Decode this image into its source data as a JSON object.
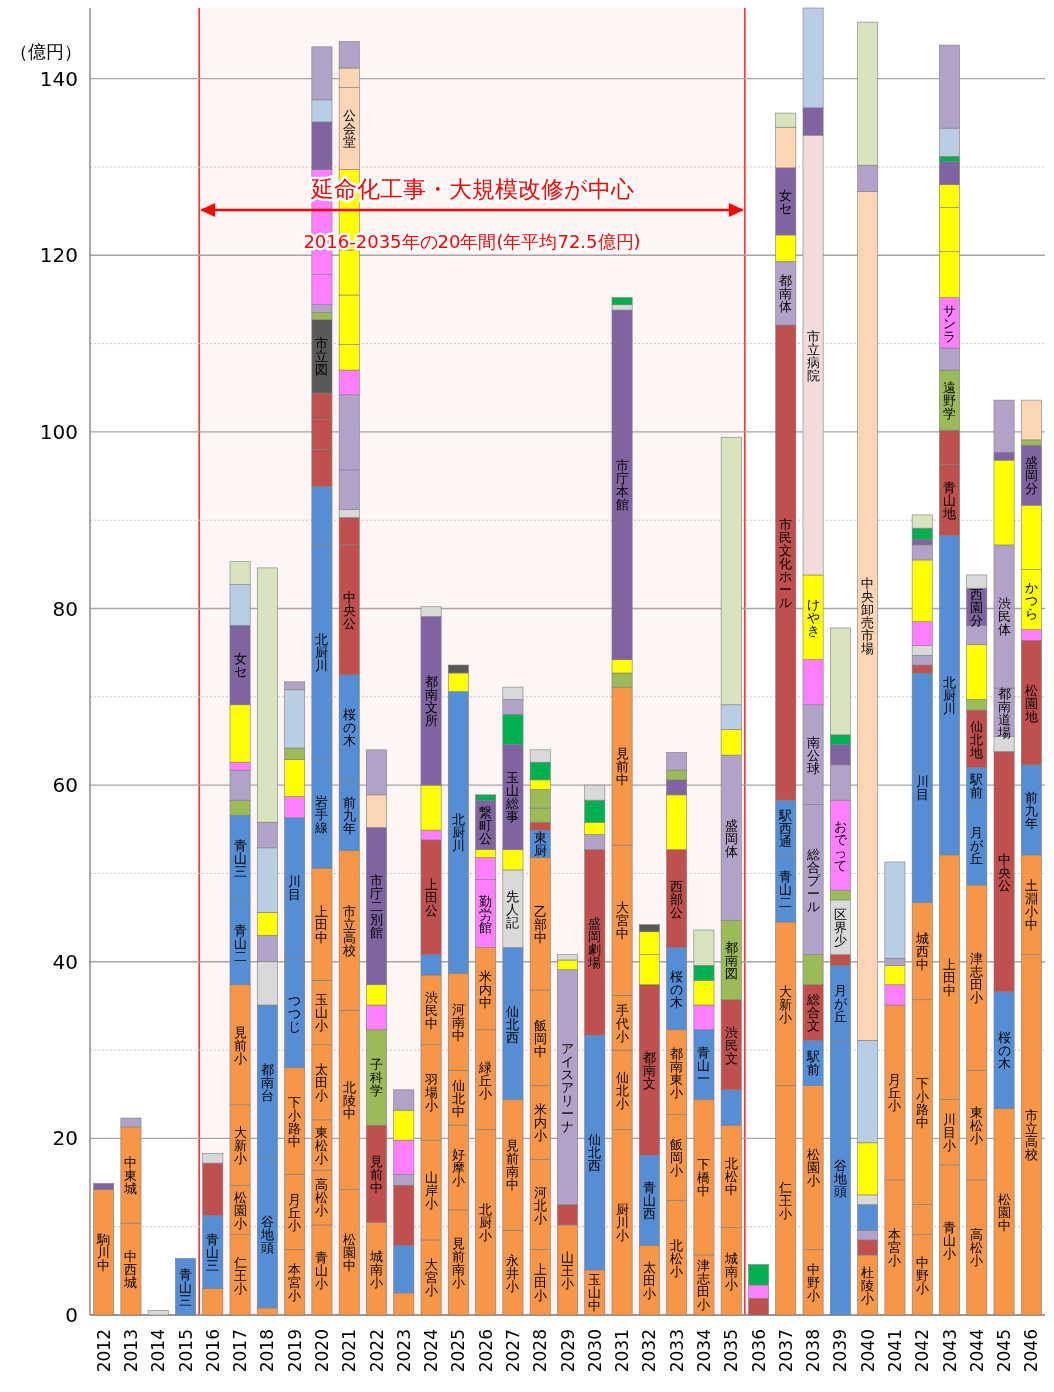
{
  "chart_data": {
    "type": "bar",
    "stacked": true,
    "ylabel": "（億円）",
    "categories": [
      "2012",
      "2013",
      "2014",
      "2015",
      "2016",
      "2017",
      "2018",
      "2019",
      "2020",
      "2021",
      "2022",
      "2023",
      "2024",
      "2025",
      "2026",
      "2027",
      "2028",
      "2029",
      "2030",
      "2031",
      "2032",
      "2033",
      "2034",
      "2035",
      "2036",
      "2037",
      "2038",
      "2039",
      "2040",
      "2041",
      "2042",
      "2043",
      "2044",
      "2045",
      "2046"
    ],
    "ylim": [
      0,
      148
    ],
    "yticks": [
      0,
      {
        "value": 10,
        "label": null
      },
      20,
      {
        "value": 30,
        "label": null
      },
      40,
      {
        "value": 50,
        "label": null
      },
      60,
      {
        "value": 70,
        "label": null
      },
      80,
      {
        "value": 90,
        "label": null
      },
      100,
      {
        "value": 110,
        "label": null
      },
      120,
      {
        "value": 130,
        "label": null
      },
      140
    ],
    "grid": "y",
    "bands": [
      {
        "axis": "x",
        "from": "2016",
        "to": "2035",
        "label": "延命化工事・大規模改修が中心",
        "color": "#ff0000"
      }
    ],
    "annotations": [
      "2016-2035年の20年間(年平均72.5億円)"
    ],
    "series": [
      {
        "values": [
          14.2,
          10.4,
          0.5,
          6.4,
          3.0,
          9.1,
          0.8,
          7.4,
          10.2,
          14.2,
          10.5,
          2.5,
          8.5,
          11.9,
          21.0,
          9.6,
          7.4,
          10.2,
          5.1,
          21.0,
          7.9,
          13.0,
          6.8,
          9.9,
          1.9,
          26.0,
          7.4,
          31.1,
          6.8,
          15.3,
          9.1,
          17.0,
          15.3,
          23.4,
          40.8
        ],
        "colors": [
          "#f79646",
          "#f79646",
          "#d9d9d9",
          "#558ed5",
          "#f79646",
          "#f79646",
          "#f79646",
          "#f79646",
          "#f79646",
          "#f79646",
          "#f79646",
          "#f79646",
          "#f79646",
          "#f79646",
          "#f79646",
          "#f79646",
          "#f79646",
          "#f79646",
          "#f79646",
          "#f79646",
          "#f79646",
          "#f79646",
          "#f79646",
          "#f79646",
          "#c0504d",
          "#f79646",
          "#f79646",
          "#558ed5",
          "#f79646",
          "#f79646",
          "#f79646",
          "#f79646",
          "#f79646",
          "#f79646",
          "#f79646"
        ],
        "value_labels": [
          "駒川中",
          "中西城",
          null,
          "青山三",
          null,
          "仁王小",
          null,
          "本宮小",
          "青山小",
          "松園中",
          "城南小",
          null,
          "大宮小",
          "見前南小",
          "北厨小",
          "永井小",
          "上田小",
          "山王小",
          "玉山中",
          "厨川小",
          "太田小",
          "北松小",
          "津志田小",
          "城南小",
          null,
          "仁王小",
          "中野小",
          "谷地頭",
          "杜陵小",
          "本宮小",
          "中野小",
          "青山小",
          "高松小",
          "松園中",
          "市立高校"
        ]
      },
      {
        "values": [
          0.7,
          10.9,
          null,
          null,
          8.3,
          5.6,
          16.8,
          8.5,
          6.2,
          20.3,
          11.0,
          5.4,
          11.3,
          9.6,
          11.3,
          14.8,
          10.2,
          2.3,
          26.6,
          9.0,
          10.2,
          9.7,
          17.6,
          11.6,
          1.5,
          18.5,
          18.6,
          8.5,
          1.7,
          19.8,
          3.4,
          7.4,
          12.4,
          13.2,
          11.3
        ],
        "colors": [
          "#8064a2",
          "#f79646",
          null,
          null,
          "#558ed5",
          "#f79646",
          "#558ed5",
          "#f79646",
          "#f79646",
          "#f79646",
          "#c0504d",
          "#558ed5",
          "#f79646",
          "#f79646",
          "#f79646",
          "#f79646",
          "#f79646",
          "#c0504d",
          "#558ed5",
          "#f79646",
          "#558ed5",
          "#f79646",
          "#f79646",
          "#f79646",
          "#ff7fff",
          "#f79646",
          "#f79646",
          "#558ed5",
          "#c0504d",
          "#f79646",
          "#f79646",
          "#f79646",
          "#f79646",
          "#558ed5",
          "#f79646"
        ],
        "value_labels": [
          null,
          "中東城",
          null,
          null,
          "青山三",
          "松園小",
          "谷地頭",
          "月丘小",
          "高松小",
          "北陵中",
          "見前中",
          null,
          "山岸小",
          "好摩小",
          "緑丘小",
          "見前南中",
          "河北小",
          null,
          "仙北西",
          "仙北小",
          "青山西",
          "飯岡小",
          "下橋中",
          "北松中",
          null,
          "大新小",
          "松園小",
          "月が丘",
          null,
          "月丘小",
          null,
          "川目小",
          "東松小",
          "桜の木",
          "土淵小中"
        ]
      },
      {
        "values": [
          null,
          1.0,
          null,
          null,
          5.9,
          9.1,
          17.5,
          12.1,
          5.7,
          18.1,
          10.8,
          6.8,
          10.8,
          6.2,
          9.3,
          17.2,
          8.4,
          26.6,
          21.0,
          6.2,
          19.3,
          9.6,
          7.9,
          4.0,
          2.3,
          7.4,
          5.1,
          1.2,
          1.1,
          2.3,
          23.2,
          27.7,
          21.0,
          27.2,
          10.2
        ],
        "colors": [
          null,
          "#b3a2c7",
          null,
          null,
          "#c0504d",
          "#f79646",
          "#558ed5",
          "#f79646",
          "#f79646",
          "#f79646",
          "#9bbb59",
          "#c0504d",
          "#f79646",
          "#f79646",
          "#f79646",
          "#558ed5",
          "#f79646",
          "#b3a2c7",
          "#c0504d",
          "#f79646",
          "#c0504d",
          "#f79646",
          "#558ed5",
          "#558ed5",
          "#00b050",
          "#558ed5",
          "#558ed5",
          "#c0504d",
          "#b3a2c7",
          "#ff7fff",
          "#f79646",
          "#f79646",
          "#f79646",
          "#c0504d",
          "#558ed5"
        ],
        "value_labels": [
          null,
          null,
          null,
          null,
          null,
          "大新小",
          "都南台",
          "下小路中",
          "東松小",
          "市立高校",
          "子科学",
          null,
          "羽場小",
          "仙北中",
          "米内中",
          "仙北西",
          "米内小",
          "アイスアリーナ",
          "盛岡劇場",
          "手代小",
          "都南文",
          "都南東小",
          "青山一",
          null,
          null,
          "青山二",
          "駅前",
          null,
          null,
          null,
          "下小路中",
          "上田中",
          "津志田小",
          "中央公",
          "前九年"
        ]
      },
      {
        "values": [
          null,
          null,
          null,
          null,
          1.1,
          13.6,
          4.9,
          12.4,
          8.5,
          8.0,
          2.8,
          1.2,
          7.9,
          11.0,
          7.7,
          8.8,
          10.8,
          1.1,
          1.7,
          17.0,
          3.4,
          9.3,
          2.8,
          10.2,
          null,
          6.4,
          6.3,
          6.2,
          2.9,
          2.2,
          11.0,
          36.2,
          9.1,
          1.7,
          14.1
        ],
        "colors": [
          null,
          null,
          null,
          null,
          "#d9d9d9",
          "#f79646",
          "#d9d9d9",
          "#558ed5",
          "#f79646",
          "#558ed5",
          "#ff7fff",
          "#b3a2c7",
          "#f79646",
          "#f79646",
          "#ff7fff",
          "#d9d9d9",
          "#f79646",
          "#ffff00",
          "#b3a2c7",
          "#f79646",
          "#ffff00",
          "#558ed5",
          "#ff7fff",
          "#c0504d",
          null,
          "#558ed5",
          "#c0504d",
          "#d9d9d9",
          "#558ed5",
          "#ffff00",
          "#f79646",
          "#558ed5",
          "#558ed5",
          "#d9d9d9",
          "#c0504d"
        ],
        "value_labels": [
          null,
          null,
          null,
          null,
          null,
          "見前小",
          null,
          "つつじ",
          "太田小",
          "前九年",
          null,
          null,
          "渋民中",
          "河南中",
          "勤労館",
          "先人記",
          "飯岡中",
          null,
          null,
          "大宮中",
          null,
          "桜の木",
          null,
          "渋民文",
          null,
          "駅西通",
          "総合文",
          "区界少",
          null,
          null,
          "城西中",
          "北厨川",
          "月が丘",
          null,
          "松園地"
        ]
      },
      {
        "values": [
          null,
          null,
          null,
          null,
          null,
          9.4,
          3.0,
          15.9,
          7.3,
          11.9,
          2.3,
          3.9,
          2.3,
          31.9,
          2.5,
          2.3,
          15.0,
          0.6,
          1.4,
          17.9,
          2.6,
          11.1,
          2.8,
          9.0,
          null,
          53.8,
          3.4,
          1.1,
          1.1,
          0.8,
          26.0,
          8.0,
          4.2,
          5.5,
          1.2
        ],
        "colors": [
          null,
          null,
          null,
          null,
          null,
          "#558ed5",
          "#b3a2c7",
          "#558ed5",
          "#f79646",
          "#558ed5",
          "#ffff00",
          "#ff7fff",
          "#558ed5",
          "#558ed5",
          "#ff7fff",
          "#ffff00",
          "#f79646",
          "#d9d9d9",
          "#ffff00",
          "#f79646",
          "#ffff00",
          "#c0504d",
          "#ffff00",
          "#9bbb59",
          null,
          "#c0504d",
          "#9bbb59",
          "#9bbb59",
          "#d9d9d9",
          "#b3a2c7",
          "#558ed5",
          "#c0504d",
          "#558ed5",
          "#b3a2c7",
          "#ff7fff"
        ],
        "value_labels": [
          null,
          null,
          null,
          null,
          null,
          "青山二",
          null,
          "川目",
          "玉山小",
          "桜の木",
          null,
          null,
          null,
          "北厨川",
          null,
          null,
          "乙部中",
          null,
          null,
          "見前中",
          null,
          "西部公",
          null,
          "都南図",
          null,
          "市民文化ホール",
          null,
          null,
          null,
          null,
          "川目",
          "青山地",
          "駅前",
          "都南道場",
          null
        ]
      },
      {
        "values": [
          null,
          null,
          null,
          null,
          null,
          9.8,
          2.6,
          2.4,
          12.7,
          14.7,
          17.8,
          3.4,
          13.0,
          2.1,
          0.9,
          11.9,
          3.1,
          null,
          2.5,
          1.6,
          0.8,
          6.2,
          1.7,
          18.7,
          null,
          7.2,
          17.0,
          10.2,
          5.9,
          10.9,
          0.9,
          3.9,
          6.5,
          16.2,
          6.8
        ],
        "colors": [
          null,
          null,
          null,
          null,
          null,
          "#558ed5",
          "#ffff00",
          "#ff7fff",
          "#f79646",
          "#c0504d",
          "#8064a2",
          "#ffff00",
          "#c0504d",
          "#ffff00",
          "#ffff00",
          "#8064a2",
          "#558ed5",
          null,
          "#00b050",
          "#9bbb59",
          "#595959",
          "#ffff00",
          "#00b050",
          "#b3a2c7",
          null,
          "#b3a2c7",
          "#b3a2c7",
          "#ff7fff",
          "#ffff00",
          "#b9cde5",
          "#c0504d",
          "#c0504d",
          "#c0504d",
          "#b3a2c7",
          "#ffff00"
        ],
        "value_labels": [
          null,
          null,
          null,
          null,
          null,
          "青山三",
          null,
          null,
          "上田中",
          "中央公",
          "市庁二別館",
          null,
          "上田公",
          null,
          null,
          "玉山総事",
          "東厨",
          null,
          null,
          null,
          null,
          null,
          null,
          "盛岡体",
          null,
          "都南体",
          "総合プール",
          "おでって",
          null,
          null,
          null,
          null,
          "仙北地",
          "渋民体",
          "かつら"
        ]
      },
      {
        "values": [
          null,
          null,
          null,
          null,
          null,
          1.7,
          7.3,
          4.2,
          12.3,
          3.1,
          3.7,
          2.3,
          1.1,
          0.9,
          5.6,
          3.4,
          0.9,
          null,
          1.7,
          1.5,
          null,
          1.7,
          4.0,
          2.9,
          null,
          3.0,
          11.3,
          4.0,
          11.6,
          null,
          1.1,
          6.8,
          1.2,
          9.6,
          7.3
        ],
        "colors": [
          null,
          null,
          null,
          null,
          null,
          "#9bbb59",
          "#b9cde5",
          "#ffff00",
          "#558ed5",
          "#c0504d",
          "#fcd5b5",
          "#b3a2c7",
          "#ff7fff",
          "#595959",
          "#8064a2",
          "#00b050",
          "#c0504d",
          null,
          "#d9d9d9",
          "#ffff00",
          null,
          "#8064a2",
          "#d7e4bd",
          "#ffff00",
          null,
          "#ffff00",
          "#b3a2c7",
          "#b3a2c7",
          "#b9cde5",
          null,
          "#b3a2c7",
          "#9bbb59",
          "#9bbb59",
          "#ffff00",
          "#ffff00"
        ],
        "value_labels": [
          null,
          null,
          null,
          null,
          null,
          null,
          null,
          null,
          "岩手線",
          null,
          null,
          null,
          null,
          null,
          "繋町公",
          null,
          null,
          null,
          null,
          null,
          null,
          null,
          null,
          null,
          null,
          null,
          "南公球",
          null,
          null,
          null,
          null,
          "遠野学",
          null,
          null,
          null
        ]
      },
      {
        "values": [
          null,
          null,
          null,
          null,
          null,
          3.4,
          2.9,
          1.3,
          24.3,
          0.9,
          5.1,
          null,
          5.1,
          null,
          0.6,
          1.7,
          1.6,
          null,
          null,
          39.6,
          null,
          1.1,
          null,
          2.8,
          null,
          7.6,
          5.1,
          2.3,
          96.1,
          null,
          1.1,
          2.5,
          6.2,
          0.9,
          6.8
        ],
        "colors": [
          null,
          null,
          null,
          null,
          null,
          "#b3a2c7",
          "#b3a2c7",
          "#9bbb59",
          "#558ed5",
          "#d9d9d9",
          "#b3a2c7",
          null,
          "#ffff00",
          null,
          "#00b050",
          "#b3a2c7",
          "#9bbb59",
          null,
          null,
          "#8064a2",
          null,
          "#9bbb59",
          null,
          "#b9cde5",
          null,
          "#8064a2",
          "#ff7fff",
          "#8064a2",
          "#fcd5b5",
          null,
          "#d9d9d9",
          "#b3a2c7",
          "#ffff00",
          "#8064a2",
          "#8064a2"
        ],
        "value_labels": [
          null,
          null,
          null,
          null,
          null,
          null,
          null,
          null,
          "北厨川",
          null,
          null,
          null,
          null,
          null,
          null,
          null,
          null,
          null,
          null,
          "市庁本館",
          null,
          null,
          null,
          null,
          null,
          "女セ",
          null,
          null,
          "中央卸売市場",
          null,
          null,
          null,
          null,
          null,
          "盛岡分"
        ]
      },
      {
        "values": [
          null,
          null,
          null,
          null,
          null,
          0.9,
          28.8,
          6.6,
          6.6,
          4.5,
          null,
          null,
          19.1,
          null,
          null,
          1.4,
          2.1,
          null,
          null,
          0.6,
          null,
          2.0,
          null,
          30.3,
          null,
          4.6,
          9.6,
          1.1,
          3.0,
          null,
          2.7,
          5.7,
          2.2,
          5.9,
          0.6
        ],
        "colors": [
          null,
          null,
          null,
          null,
          null,
          "#ff7fff",
          "#d7e4bd",
          "#b9cde5",
          "#558ed5",
          "#b3a2c7",
          null,
          null,
          "#8064a2",
          null,
          null,
          "#d9d9d9",
          "#9bbb59",
          null,
          null,
          "#d9d9d9",
          null,
          "#b3a2c7",
          null,
          "#d7e4bd",
          null,
          "#fcd5b5",
          "#ffff00",
          "#00b050",
          "#b3a2c7",
          null,
          "#ff7fff",
          "#ff7fff",
          "#b3a2c7",
          "#b3a2c7",
          "#9bbb59"
        ],
        "value_labels": [
          null,
          null,
          null,
          null,
          null,
          null,
          null,
          null,
          null,
          null,
          null,
          null,
          "都南文所",
          null,
          null,
          null,
          null,
          null,
          null,
          null,
          null,
          null,
          null,
          null,
          null,
          null,
          "けやき",
          null,
          null,
          null,
          null,
          "サンラ",
          null,
          null,
          null
        ]
      },
      {
        "values": [
          null,
          null,
          null,
          null,
          null,
          6.5,
          null,
          0.9,
          4.2,
          8.5,
          null,
          null,
          1.1,
          null,
          null,
          null,
          1.1,
          null,
          null,
          0.8,
          null,
          null,
          null,
          null,
          null,
          1.6,
          49.8,
          12.1,
          16.2,
          null,
          7.0,
          5.2,
          4.2,
          null,
          4.5
        ],
        "colors": [
          null,
          null,
          null,
          null,
          null,
          "#ffff00",
          null,
          "#b3a2c7",
          "#c0504d",
          "#b3a2c7",
          null,
          null,
          "#d9d9d9",
          null,
          null,
          null,
          "#ffff00",
          null,
          null,
          "#00b050",
          null,
          null,
          null,
          null,
          null,
          "#d7e4bd",
          "#f2dcdb",
          "#d7e4bd",
          "#d7e4bd",
          null,
          "#ffff00",
          "#ffff00",
          "#8064a2",
          null,
          "#fcd5b5"
        ],
        "value_labels": [
          null,
          null,
          null,
          null,
          null,
          null,
          null,
          null,
          null,
          null,
          null,
          null,
          null,
          null,
          null,
          null,
          null,
          null,
          null,
          null,
          null,
          null,
          null,
          null,
          null,
          null,
          "市立病院",
          null,
          null,
          null,
          null,
          null,
          "西園分",
          null,
          null
        ]
      },
      {
        "values": [
          null,
          null,
          null,
          null,
          null,
          9.0,
          null,
          null,
          3.4,
          2.8,
          null,
          null,
          null,
          null,
          null,
          null,
          2.0,
          null,
          null,
          null,
          null,
          null,
          null,
          null,
          null,
          null,
          3.1,
          null,
          null,
          null,
          1.7,
          5.0,
          1.5,
          null,
          null
        ],
        "colors": [
          null,
          null,
          null,
          null,
          null,
          "#8064a2",
          null,
          null,
          "#c0504d",
          "#ff7fff",
          null,
          null,
          null,
          null,
          null,
          null,
          "#00b050",
          null,
          null,
          null,
          null,
          null,
          null,
          null,
          null,
          null,
          "#8064a2",
          null,
          null,
          null,
          "#b3a2c7",
          "#ffff00",
          "#d9d9d9",
          null,
          null
        ],
        "value_labels": [
          null,
          null,
          null,
          null,
          null,
          "女セ",
          null,
          null,
          null,
          null,
          null,
          null,
          null,
          null,
          null,
          null,
          null,
          null,
          null,
          null,
          null,
          null,
          null,
          null,
          null,
          null,
          null,
          null,
          null,
          null,
          null,
          null,
          null,
          null,
          null
        ]
      },
      {
        "values": [
          null,
          null,
          null,
          null,
          null,
          4.6,
          null,
          null,
          3.0,
          2.9,
          null,
          null,
          null,
          null,
          null,
          null,
          1.4,
          null,
          null,
          null,
          null,
          null,
          null,
          null,
          null,
          null,
          11.3,
          null,
          null,
          null,
          0.6,
          2.6,
          null,
          null,
          null
        ],
        "colors": [
          null,
          null,
          null,
          null,
          null,
          "#b9cde5",
          null,
          null,
          "#c0504d",
          "#ffff00",
          null,
          null,
          null,
          null,
          null,
          null,
          "#d9d9d9",
          null,
          null,
          null,
          null,
          null,
          null,
          null,
          null,
          null,
          "#b9cde5",
          null,
          null,
          null,
          "#8064a2",
          "#ffff00",
          null,
          null,
          null
        ]
      },
      {
        "values": [
          null,
          null,
          null,
          null,
          null,
          2.6,
          null,
          null,
          8.3,
          5.6,
          null,
          null,
          null,
          null,
          null,
          null,
          null,
          null,
          null,
          null,
          null,
          null,
          null,
          null,
          null,
          null,
          null,
          null,
          null,
          null,
          1.3,
          2.6,
          null,
          null,
          null
        ],
        "colors": [
          null,
          null,
          null,
          null,
          null,
          "#d7e4bd",
          null,
          null,
          "#595959",
          "#ffff00",
          null,
          null,
          null,
          null,
          null,
          null,
          null,
          null,
          null,
          null,
          null,
          null,
          null,
          null,
          null,
          null,
          null,
          null,
          null,
          null,
          "#00b050",
          "#8064a2",
          null,
          null,
          null
        ],
        "value_labels": [
          null,
          null,
          null,
          null,
          null,
          null,
          null,
          null,
          "市立図",
          null,
          null,
          null,
          null,
          null,
          null,
          null,
          null,
          null,
          null,
          null,
          null,
          null,
          null,
          null,
          null,
          null,
          null,
          null,
          null,
          null,
          null,
          null,
          null,
          null,
          null
        ]
      },
      {
        "values": [
          null,
          null,
          null,
          null,
          null,
          null,
          null,
          null,
          0.8,
          5.1,
          null,
          null,
          null,
          null,
          null,
          null,
          null,
          null,
          null,
          null,
          null,
          null,
          null,
          null,
          null,
          null,
          null,
          null,
          null,
          null,
          1.5,
          0.6,
          null,
          null,
          null
        ],
        "colors": [
          null,
          null,
          null,
          null,
          null,
          null,
          null,
          null,
          "#9bbb59",
          "#ffff00",
          null,
          null,
          null,
          null,
          null,
          null,
          null,
          null,
          null,
          null,
          null,
          null,
          null,
          null,
          null,
          null,
          null,
          null,
          null,
          null,
          "#d7e4bd",
          "#00b050",
          null,
          null,
          null
        ]
      },
      {
        "values": [
          null,
          null,
          null,
          null,
          null,
          null,
          null,
          null,
          0.9,
          9.1,
          null,
          null,
          null,
          null,
          null,
          null,
          null,
          null,
          null,
          null,
          null,
          null,
          null,
          null,
          null,
          null,
          null,
          null,
          null,
          null,
          null,
          3.2,
          null,
          null,
          null
        ],
        "colors": [
          null,
          null,
          null,
          null,
          null,
          null,
          null,
          null,
          "#b3a2c7",
          "#ffff00",
          null,
          null,
          null,
          null,
          null,
          null,
          null,
          null,
          null,
          null,
          null,
          null,
          null,
          null,
          null,
          null,
          null,
          null,
          null,
          null,
          null,
          "#b9cde5",
          null,
          null,
          null
        ]
      },
      {
        "values": [
          null,
          null,
          null,
          null,
          null,
          null,
          null,
          null,
          3.4,
          9.3,
          null,
          null,
          null,
          null,
          null,
          null,
          null,
          null,
          null,
          null,
          null,
          null,
          null,
          null,
          null,
          null,
          null,
          null,
          null,
          null,
          null,
          9.4,
          null,
          null,
          null
        ],
        "colors": [
          null,
          null,
          null,
          null,
          null,
          null,
          null,
          null,
          "#ff7fff",
          "#fcd5b5",
          null,
          null,
          null,
          null,
          null,
          null,
          null,
          null,
          null,
          null,
          null,
          null,
          null,
          null,
          null,
          null,
          null,
          null,
          null,
          null,
          null,
          "#b3a2c7",
          null,
          null,
          null
        ],
        "value_labels": [
          null,
          null,
          null,
          null,
          null,
          null,
          null,
          null,
          null,
          "公会堂",
          null,
          null,
          null,
          null,
          null,
          null,
          null,
          null,
          null,
          null,
          null,
          null,
          null,
          null,
          null,
          null,
          null,
          null,
          null,
          null,
          null,
          null,
          null,
          null,
          null
        ]
      },
      {
        "values": [
          null,
          null,
          null,
          null,
          null,
          null,
          null,
          null,
          2.8,
          2.2,
          null,
          null,
          null,
          null,
          null,
          null,
          null,
          null,
          null,
          null,
          null,
          null,
          null,
          null,
          null,
          null,
          null,
          null,
          null,
          null,
          null,
          null,
          null,
          null,
          null
        ],
        "colors": [
          null,
          null,
          null,
          null,
          null,
          null,
          null,
          null,
          "#ff7fff",
          "#fcd5b5",
          null,
          null,
          null,
          null,
          null,
          null,
          null,
          null,
          null,
          null,
          null,
          null,
          null,
          null,
          null,
          null,
          null,
          null,
          null,
          null,
          null,
          null,
          null,
          null,
          null
        ]
      },
      {
        "values": [
          null,
          null,
          null,
          null,
          null,
          null,
          null,
          null,
          9.1,
          3.0,
          null,
          null,
          null,
          null,
          null,
          null,
          null,
          null,
          null,
          null,
          null,
          null,
          null,
          null,
          null,
          null,
          null,
          null,
          null,
          null,
          null,
          null,
          null,
          null,
          null
        ],
        "colors": [
          null,
          null,
          null,
          null,
          null,
          null,
          null,
          null,
          "#ff7fff",
          "#b3a2c7",
          null,
          null,
          null,
          null,
          null,
          null,
          null,
          null,
          null,
          null,
          null,
          null,
          null,
          null,
          null,
          null,
          null,
          null,
          null,
          null,
          null,
          null,
          null,
          null,
          null
        ]
      },
      {
        "values": [
          null,
          null,
          null,
          null,
          null,
          null,
          null,
          null,
          5.4,
          null,
          null,
          null,
          null,
          null,
          null,
          null,
          null,
          null,
          null,
          null,
          null,
          null,
          null,
          null,
          null,
          null,
          null,
          null,
          null,
          null,
          null,
          null,
          null,
          null,
          null
        ],
        "colors": [
          null,
          null,
          null,
          null,
          null,
          null,
          null,
          null,
          "#8064a2",
          null,
          null,
          null,
          null,
          null,
          null,
          null,
          null,
          null,
          null,
          null,
          null,
          null,
          null,
          null,
          null,
          null,
          null,
          null,
          null,
          null,
          null,
          null,
          null,
          null,
          null
        ]
      },
      {
        "values": [
          null,
          null,
          null,
          null,
          null,
          null,
          null,
          null,
          2.5,
          null,
          null,
          null,
          null,
          null,
          null,
          null,
          null,
          null,
          null,
          null,
          null,
          null,
          null,
          null,
          null,
          null,
          null,
          null,
          null,
          null,
          null,
          null,
          null,
          null,
          null
        ],
        "colors": [
          null,
          null,
          null,
          null,
          null,
          null,
          null,
          null,
          "#b9cde5",
          null,
          null,
          null,
          null,
          null,
          null,
          null,
          null,
          null,
          null,
          null,
          null,
          null,
          null,
          null,
          null,
          null,
          null,
          null,
          null,
          null,
          null,
          null,
          null,
          null,
          null
        ]
      },
      {
        "values": [
          null,
          null,
          null,
          null,
          null,
          null,
          null,
          null,
          6.0,
          null,
          null,
          null,
          null,
          null,
          null,
          null,
          null,
          null,
          null,
          null,
          null,
          null,
          null,
          null,
          null,
          null,
          null,
          null,
          null,
          null,
          null,
          null,
          null,
          null,
          null
        ],
        "colors": [
          null,
          null,
          null,
          null,
          null,
          null,
          null,
          null,
          "#b3a2c7",
          null,
          null,
          null,
          null,
          null,
          null,
          null,
          null,
          null,
          null,
          null,
          null,
          null,
          null,
          null,
          null,
          null,
          null,
          null,
          null,
          null,
          null,
          null,
          null,
          null,
          null
        ]
      }
    ]
  }
}
